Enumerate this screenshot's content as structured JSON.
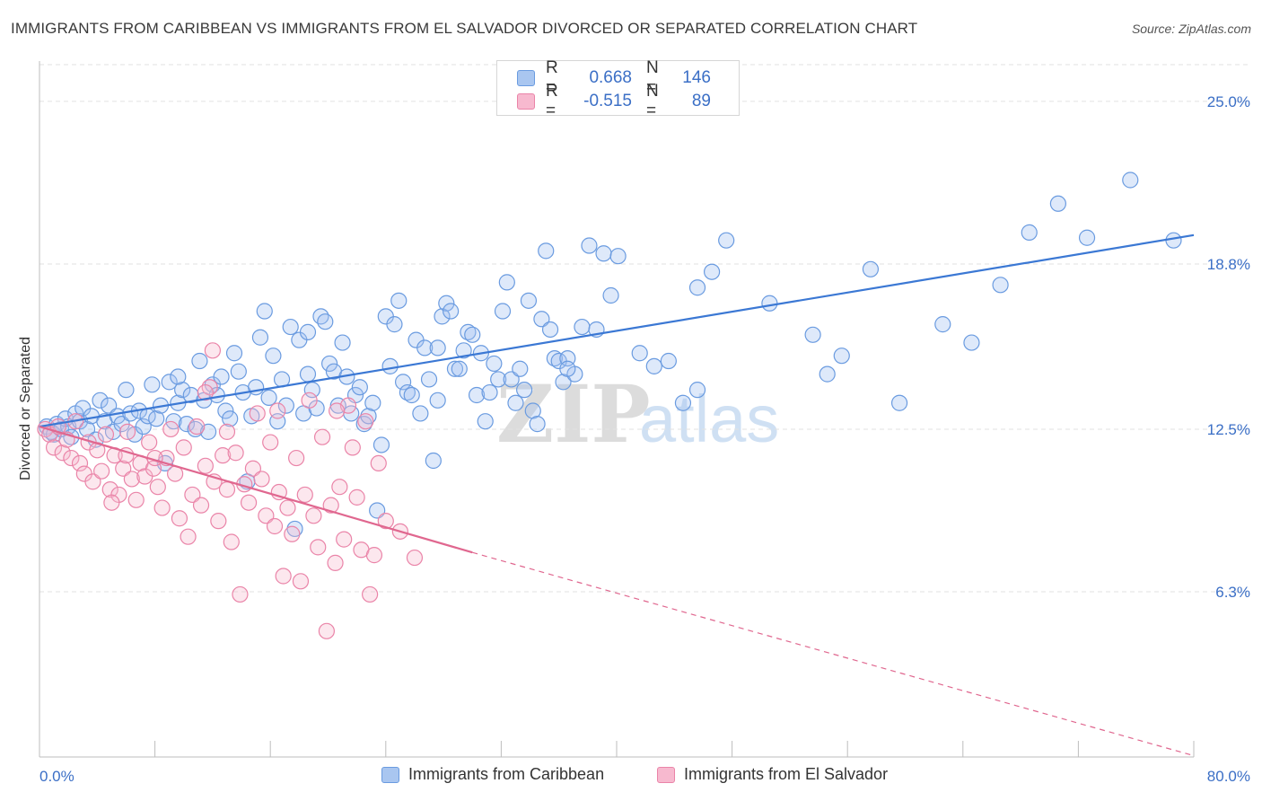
{
  "header": {
    "title": "IMMIGRANTS FROM CARIBBEAN VS IMMIGRANTS FROM EL SALVADOR DIVORCED OR SEPARATED CORRELATION CHART",
    "source": "Source: ZipAtlas.com"
  },
  "watermark": {
    "part1": "ZIP",
    "part2": "atlas"
  },
  "legend": {
    "rows": [
      {
        "r_label": "R =",
        "r_value": "0.668",
        "n_label": "N =",
        "n_value": "146",
        "color": "#a9c6f0",
        "border": "#6a9be0"
      },
      {
        "r_label": "R =",
        "r_value": "-0.515",
        "n_label": "N =",
        "n_value": "89",
        "color": "#f7b9cf",
        "border": "#ea84a8"
      }
    ]
  },
  "bottom_legend": {
    "items": [
      {
        "label": "Immigrants from Caribbean",
        "color": "#a9c6f0",
        "border": "#6a9be0"
      },
      {
        "label": "Immigrants from El Salvador",
        "color": "#f7b9cf",
        "border": "#ea84a8"
      }
    ]
  },
  "chart_data": {
    "type": "scatter",
    "title": "IMMIGRANTS FROM CARIBBEAN VS IMMIGRANTS FROM EL SALVADOR DIVORCED OR SEPARATED CORRELATION CHART",
    "ylabel": "Divorced or Separated",
    "xlabel": "",
    "xlim": [
      0,
      80
    ],
    "ylim": [
      0,
      26.4
    ],
    "x_tick_labels": [
      "0.0%",
      "80.0%"
    ],
    "y_ticks": [
      6.3,
      12.5,
      18.8,
      25.0
    ],
    "y_tick_labels": [
      "6.3%",
      "12.5%",
      "18.8%",
      "25.0%"
    ],
    "grid": "horizontal-dashed",
    "colors": {
      "blue": "#3b78d4",
      "pink": "#e0678f",
      "blue_point": "#6a9be0",
      "pink_point": "#ea84a8",
      "tick_text": "#3b6fc6"
    },
    "series": [
      {
        "name": "Immigrants from Caribbean",
        "color": "#6a9be0",
        "trend": {
          "x": [
            0,
            80
          ],
          "y": [
            12.6,
            19.9
          ]
        },
        "points": [
          [
            0.5,
            12.6
          ],
          [
            0.8,
            12.4
          ],
          [
            1.0,
            12.3
          ],
          [
            1.2,
            12.7
          ],
          [
            1.5,
            12.5
          ],
          [
            1.8,
            12.9
          ],
          [
            2.0,
            12.6
          ],
          [
            2.2,
            12.2
          ],
          [
            2.5,
            13.1
          ],
          [
            2.8,
            12.8
          ],
          [
            3.0,
            13.3
          ],
          [
            3.3,
            12.5
          ],
          [
            3.6,
            13.0
          ],
          [
            3.9,
            12.1
          ],
          [
            4.2,
            13.6
          ],
          [
            4.5,
            12.8
          ],
          [
            4.8,
            13.4
          ],
          [
            5.1,
            12.4
          ],
          [
            5.4,
            13.0
          ],
          [
            5.7,
            12.7
          ],
          [
            6.0,
            14.0
          ],
          [
            6.3,
            13.1
          ],
          [
            6.6,
            12.3
          ],
          [
            6.9,
            13.2
          ],
          [
            7.2,
            12.6
          ],
          [
            7.5,
            13.0
          ],
          [
            7.8,
            14.2
          ],
          [
            8.1,
            12.9
          ],
          [
            8.4,
            13.4
          ],
          [
            8.7,
            11.2
          ],
          [
            9.0,
            14.3
          ],
          [
            9.3,
            12.8
          ],
          [
            9.6,
            13.5
          ],
          [
            9.9,
            14.0
          ],
          [
            10.2,
            12.7
          ],
          [
            10.5,
            13.8
          ],
          [
            10.8,
            12.5
          ],
          [
            11.1,
            15.1
          ],
          [
            11.4,
            13.6
          ],
          [
            11.7,
            12.4
          ],
          [
            12.0,
            14.2
          ],
          [
            12.3,
            13.8
          ],
          [
            12.6,
            14.5
          ],
          [
            12.9,
            13.2
          ],
          [
            13.2,
            12.9
          ],
          [
            13.5,
            15.4
          ],
          [
            13.8,
            14.7
          ],
          [
            14.1,
            13.9
          ],
          [
            14.4,
            10.5
          ],
          [
            14.7,
            13.0
          ],
          [
            15.0,
            14.1
          ],
          [
            15.3,
            16.0
          ],
          [
            15.6,
            17.0
          ],
          [
            15.9,
            13.7
          ],
          [
            16.2,
            15.3
          ],
          [
            16.5,
            12.8
          ],
          [
            16.8,
            14.4
          ],
          [
            17.1,
            13.4
          ],
          [
            17.4,
            16.4
          ],
          [
            17.7,
            8.7
          ],
          [
            18.0,
            15.9
          ],
          [
            18.3,
            13.1
          ],
          [
            18.6,
            16.2
          ],
          [
            18.9,
            14.0
          ],
          [
            19.2,
            13.3
          ],
          [
            19.5,
            16.8
          ],
          [
            19.8,
            16.6
          ],
          [
            20.1,
            15.0
          ],
          [
            20.4,
            14.7
          ],
          [
            20.7,
            13.4
          ],
          [
            21.0,
            15.8
          ],
          [
            21.3,
            14.5
          ],
          [
            21.6,
            13.1
          ],
          [
            21.9,
            13.8
          ],
          [
            22.2,
            14.1
          ],
          [
            22.5,
            12.7
          ],
          [
            22.8,
            13.0
          ],
          [
            23.1,
            13.5
          ],
          [
            23.4,
            9.4
          ],
          [
            23.7,
            11.9
          ],
          [
            24.0,
            16.8
          ],
          [
            24.3,
            14.9
          ],
          [
            24.6,
            16.5
          ],
          [
            24.9,
            17.4
          ],
          [
            25.2,
            14.3
          ],
          [
            25.5,
            13.9
          ],
          [
            25.8,
            13.8
          ],
          [
            26.1,
            15.9
          ],
          [
            26.4,
            13.1
          ],
          [
            26.7,
            15.6
          ],
          [
            27.0,
            14.4
          ],
          [
            27.3,
            11.3
          ],
          [
            27.6,
            15.6
          ],
          [
            27.9,
            16.8
          ],
          [
            28.2,
            17.3
          ],
          [
            28.5,
            17.0
          ],
          [
            28.8,
            14.8
          ],
          [
            29.1,
            14.8
          ],
          [
            29.4,
            15.5
          ],
          [
            29.7,
            16.2
          ],
          [
            30.0,
            16.1
          ],
          [
            30.3,
            13.8
          ],
          [
            30.6,
            15.4
          ],
          [
            30.9,
            12.8
          ],
          [
            31.2,
            13.9
          ],
          [
            31.5,
            15.0
          ],
          [
            31.8,
            14.4
          ],
          [
            32.1,
            17.0
          ],
          [
            32.4,
            18.1
          ],
          [
            32.7,
            14.4
          ],
          [
            33.0,
            13.5
          ],
          [
            33.3,
            14.8
          ],
          [
            33.6,
            14.0
          ],
          [
            33.9,
            17.4
          ],
          [
            34.2,
            13.2
          ],
          [
            34.5,
            12.7
          ],
          [
            34.8,
            16.7
          ],
          [
            35.1,
            19.3
          ],
          [
            35.4,
            16.3
          ],
          [
            35.7,
            15.2
          ],
          [
            36.0,
            15.1
          ],
          [
            36.3,
            14.3
          ],
          [
            36.6,
            15.2
          ],
          [
            37.1,
            14.6
          ],
          [
            37.6,
            16.4
          ],
          [
            38.1,
            19.5
          ],
          [
            38.6,
            16.3
          ],
          [
            39.1,
            19.2
          ],
          [
            39.6,
            17.6
          ],
          [
            40.1,
            19.1
          ],
          [
            41.6,
            15.4
          ],
          [
            42.6,
            14.9
          ],
          [
            43.6,
            15.1
          ],
          [
            44.6,
            13.5
          ],
          [
            45.6,
            17.9
          ],
          [
            46.6,
            18.5
          ],
          [
            47.6,
            19.7
          ],
          [
            50.6,
            17.3
          ],
          [
            53.6,
            16.1
          ],
          [
            55.6,
            15.3
          ],
          [
            57.6,
            18.6
          ],
          [
            59.6,
            13.5
          ],
          [
            62.6,
            16.5
          ],
          [
            64.6,
            15.8
          ],
          [
            66.6,
            18.0
          ],
          [
            68.6,
            20.0
          ],
          [
            70.6,
            21.1
          ],
          [
            72.6,
            19.8
          ],
          [
            75.6,
            22.0
          ],
          [
            78.6,
            19.7
          ],
          [
            9.6,
            14.5
          ],
          [
            18.6,
            14.6
          ],
          [
            27.6,
            13.6
          ],
          [
            36.6,
            14.8
          ],
          [
            45.6,
            14.0
          ],
          [
            54.6,
            14.6
          ]
        ]
      },
      {
        "name": "Immigrants from El Salvador",
        "color": "#ea84a8",
        "trend": {
          "x": [
            0,
            30
          ],
          "y": [
            12.6,
            7.8
          ]
        },
        "trend_dashed": {
          "x": [
            30,
            80
          ],
          "y": [
            7.8,
            0.05
          ]
        },
        "points": [
          [
            0.4,
            12.5
          ],
          [
            0.7,
            12.3
          ],
          [
            1.0,
            11.8
          ],
          [
            1.3,
            12.6
          ],
          [
            1.6,
            11.6
          ],
          [
            1.9,
            12.1
          ],
          [
            2.2,
            11.4
          ],
          [
            2.5,
            12.8
          ],
          [
            2.8,
            11.2
          ],
          [
            3.1,
            10.8
          ],
          [
            3.4,
            12.0
          ],
          [
            3.7,
            10.5
          ],
          [
            4.0,
            11.7
          ],
          [
            4.3,
            10.9
          ],
          [
            4.6,
            12.3
          ],
          [
            4.9,
            10.2
          ],
          [
            5.2,
            11.5
          ],
          [
            5.5,
            10.0
          ],
          [
            5.8,
            11.0
          ],
          [
            6.1,
            12.4
          ],
          [
            6.4,
            10.6
          ],
          [
            6.7,
            9.8
          ],
          [
            7.0,
            11.2
          ],
          [
            7.3,
            10.7
          ],
          [
            7.6,
            12.0
          ],
          [
            7.9,
            11.0
          ],
          [
            8.2,
            10.3
          ],
          [
            8.5,
            9.5
          ],
          [
            8.8,
            11.4
          ],
          [
            9.1,
            12.5
          ],
          [
            9.4,
            10.8
          ],
          [
            9.7,
            9.1
          ],
          [
            10.0,
            11.8
          ],
          [
            10.3,
            8.4
          ],
          [
            10.6,
            10.0
          ],
          [
            10.9,
            12.6
          ],
          [
            11.2,
            9.6
          ],
          [
            11.5,
            11.1
          ],
          [
            11.8,
            14.1
          ],
          [
            12.1,
            10.5
          ],
          [
            12.4,
            9.0
          ],
          [
            12.7,
            11.5
          ],
          [
            13.0,
            10.2
          ],
          [
            13.3,
            8.2
          ],
          [
            13.6,
            11.6
          ],
          [
            13.9,
            6.2
          ],
          [
            14.2,
            10.4
          ],
          [
            14.5,
            9.7
          ],
          [
            14.8,
            11.0
          ],
          [
            15.1,
            13.1
          ],
          [
            15.4,
            10.6
          ],
          [
            15.7,
            9.2
          ],
          [
            16.0,
            12.0
          ],
          [
            16.3,
            8.8
          ],
          [
            16.6,
            10.1
          ],
          [
            16.9,
            6.9
          ],
          [
            17.2,
            9.5
          ],
          [
            17.5,
            8.5
          ],
          [
            17.8,
            11.4
          ],
          [
            18.1,
            6.7
          ],
          [
            18.4,
            10.0
          ],
          [
            18.7,
            13.6
          ],
          [
            19.0,
            9.2
          ],
          [
            19.3,
            8.0
          ],
          [
            19.6,
            12.2
          ],
          [
            19.9,
            4.8
          ],
          [
            20.2,
            9.6
          ],
          [
            20.5,
            7.4
          ],
          [
            20.8,
            10.3
          ],
          [
            21.1,
            8.3
          ],
          [
            21.4,
            13.4
          ],
          [
            21.7,
            11.8
          ],
          [
            22.0,
            9.9
          ],
          [
            22.3,
            7.9
          ],
          [
            22.6,
            12.8
          ],
          [
            22.9,
            6.2
          ],
          [
            23.2,
            7.7
          ],
          [
            23.5,
            11.2
          ],
          [
            24.0,
            9.0
          ],
          [
            25.0,
            8.6
          ],
          [
            26.0,
            7.6
          ],
          [
            13.0,
            12.4
          ],
          [
            11.5,
            13.9
          ],
          [
            16.5,
            13.2
          ],
          [
            20.6,
            13.2
          ],
          [
            12.0,
            15.5
          ],
          [
            8.0,
            11.4
          ],
          [
            6.0,
            11.5
          ],
          [
            5.0,
            9.7
          ]
        ]
      }
    ]
  }
}
